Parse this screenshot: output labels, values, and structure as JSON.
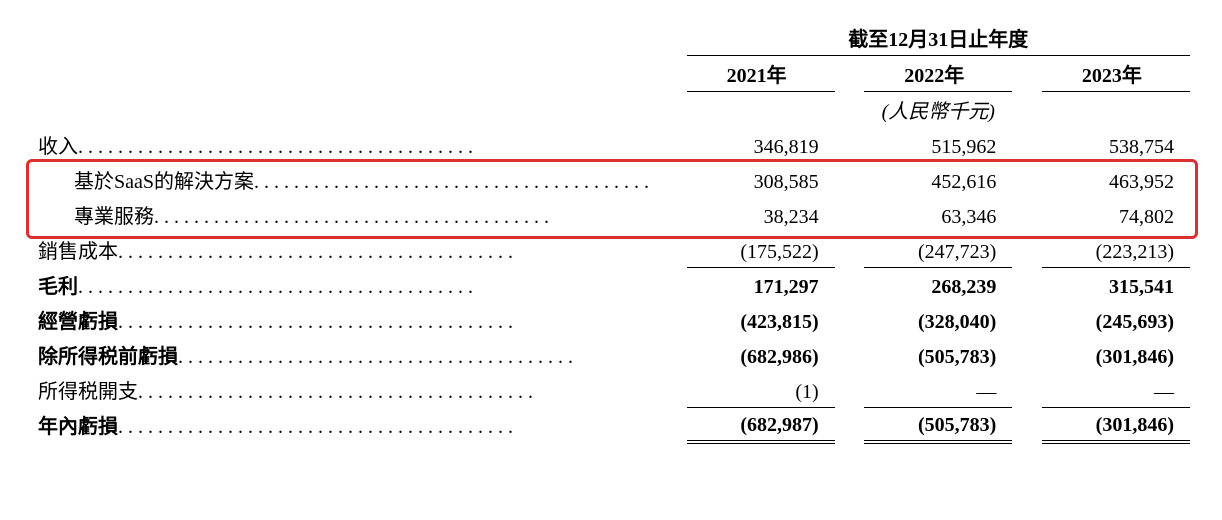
{
  "table": {
    "type": "table",
    "header_title": "截至12月31日止年度",
    "years": [
      "2021年",
      "2022年",
      "2023年"
    ],
    "unit_label": "(人民幣千元)",
    "rows": [
      {
        "label": "收入",
        "indent": false,
        "bold": false,
        "values": [
          "346,819",
          "515,962",
          "538,754"
        ],
        "border_top": false,
        "border_bottom": false,
        "double_bottom": false
      },
      {
        "label": "基於SaaS的解決方案",
        "indent": true,
        "bold": false,
        "values": [
          "308,585",
          "452,616",
          "463,952"
        ],
        "border_top": false,
        "border_bottom": false,
        "double_bottom": false
      },
      {
        "label": "專業服務",
        "indent": true,
        "bold": false,
        "values": [
          "38,234",
          "63,346",
          "74,802"
        ],
        "border_top": false,
        "border_bottom": false,
        "double_bottom": false
      },
      {
        "label": "銷售成本",
        "indent": false,
        "bold": false,
        "values": [
          "(175,522)",
          "(247,723)",
          "(223,213)"
        ],
        "border_top": false,
        "border_bottom": true,
        "double_bottom": false
      },
      {
        "label": "毛利",
        "indent": false,
        "bold": true,
        "values": [
          "171,297",
          "268,239",
          "315,541"
        ],
        "border_top": false,
        "border_bottom": false,
        "double_bottom": false
      },
      {
        "label": "經營虧損",
        "indent": false,
        "bold": true,
        "values": [
          "(423,815)",
          "(328,040)",
          "(245,693)"
        ],
        "border_top": false,
        "border_bottom": false,
        "double_bottom": false
      },
      {
        "label": "除所得税前虧損",
        "indent": false,
        "bold": true,
        "values": [
          "(682,986)",
          "(505,783)",
          "(301,846)"
        ],
        "border_top": false,
        "border_bottom": false,
        "double_bottom": false
      },
      {
        "label": "所得税開支",
        "indent": false,
        "bold": false,
        "values": [
          "(1)",
          "—",
          "—"
        ],
        "border_top": false,
        "border_bottom": true,
        "double_bottom": false
      },
      {
        "label": "年內虧損",
        "indent": false,
        "bold": true,
        "values": [
          "(682,987)",
          "(505,783)",
          "(301,846)"
        ],
        "border_top": false,
        "border_bottom": false,
        "double_bottom": true
      }
    ],
    "highlight": {
      "color": "#d93030",
      "row_start": 1,
      "row_end": 2
    },
    "background_color": "#ffffff",
    "text_color": "#000000",
    "label_fontsize": 20,
    "value_fontsize": 20,
    "dot_leader": ". . . . . . . . . . . . . . . . . . . . . . . . . . . . . . . . . . . . . . . ."
  }
}
